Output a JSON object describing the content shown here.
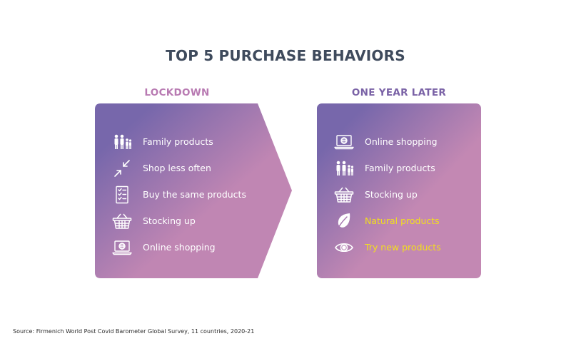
{
  "title": "TOP 5 PURCHASE BEHAVIORS",
  "colors": {
    "title": "#3e4a5c",
    "lockdown_heading": "#b87ab2",
    "later_heading": "#7a62a6",
    "gradient_start": "#7767ab",
    "gradient_end": "#c388b3",
    "highlight_text": "#f2de1d"
  },
  "lockdown": {
    "heading": "LOCKDOWN",
    "items": [
      {
        "icon": "family-icon",
        "label": "Family products"
      },
      {
        "icon": "shrink-arrows-icon",
        "label": "Shop less often"
      },
      {
        "icon": "checklist-icon",
        "label": "Buy the same products"
      },
      {
        "icon": "basket-icon",
        "label": "Stocking up"
      },
      {
        "icon": "laptop-globe-icon",
        "label": "Online shopping"
      }
    ]
  },
  "one_year_later": {
    "heading": "ONE YEAR LATER",
    "items": [
      {
        "icon": "laptop-globe-icon",
        "label": "Online shopping",
        "new": false
      },
      {
        "icon": "family-icon",
        "label": "Family products",
        "new": false
      },
      {
        "icon": "basket-icon",
        "label": "Stocking up",
        "new": false
      },
      {
        "icon": "leaf-icon",
        "label": "Natural products",
        "new": true
      },
      {
        "icon": "eye-icon",
        "label": "Try new products",
        "new": true
      }
    ]
  },
  "source": "Source: Firmenich World Post Covid Barometer Global Survey, 11 countries, 2020-21"
}
